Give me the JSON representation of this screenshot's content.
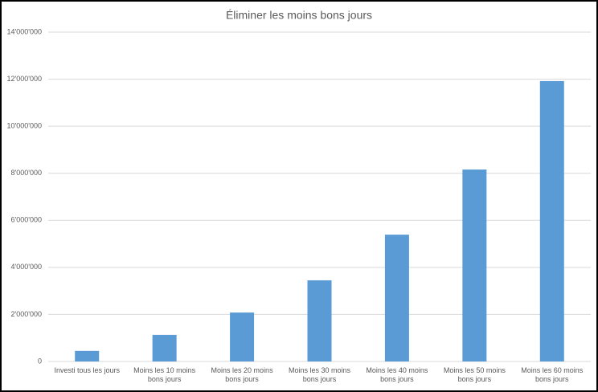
{
  "chart_data": {
    "type": "bar",
    "title": "Éliminer les moins bons jours",
    "categories": [
      "Investi tous les jours",
      "Moins les 10 moins bons jours",
      "Moins les 20 moins bons jours",
      "Moins les 30 moins bons jours",
      "Moins les 40 moins bons jours",
      "Moins les 50 moins bons jours",
      "Moins les 60 moins bons jours"
    ],
    "values": [
      450000,
      1130000,
      2080000,
      3450000,
      5390000,
      8160000,
      11920000
    ],
    "color": "#5b9bd5",
    "ylim": [
      0,
      14000000
    ],
    "yticks": [
      0,
      {
        "value": 2000000,
        "label": "2'000'000"
      },
      {
        "value": 4000000,
        "label": "4'000'000"
      },
      {
        "value": 6000000,
        "label": "6'000'000"
      },
      {
        "value": 8000000,
        "label": "8'000'000"
      },
      {
        "value": 10000000,
        "label": "10'000'000"
      },
      {
        "value": 12000000,
        "label": "12'000'000"
      },
      {
        "value": 14000000,
        "label": "14'000'000"
      }
    ],
    "grid": true
  }
}
